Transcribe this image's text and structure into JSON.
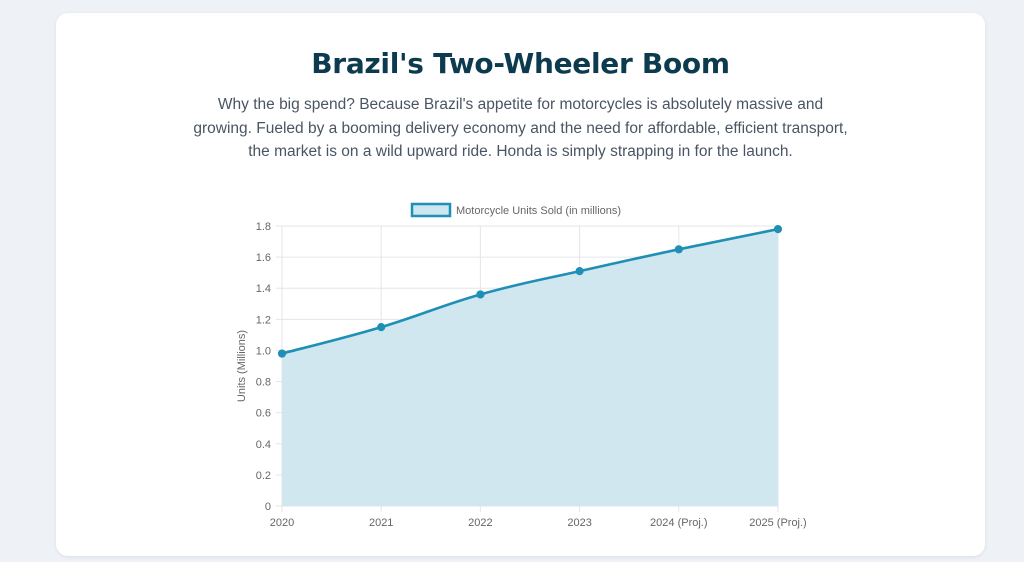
{
  "page": {
    "title": "Brazil's Two-Wheeler Boom",
    "description": "Why the big spend? Because Brazil's appetite for motorcycles is absolutely massive and growing. Fueled by a booming delivery economy and the need for affordable, efficient transport, the market is on a wild upward ride. Honda is simply strapping in for the launch."
  },
  "colors": {
    "line": "#1f8fb5",
    "fill": "#cde6ef",
    "title": "#0c3b4f",
    "grid": "#e3e6ea"
  },
  "chart_data": {
    "type": "line",
    "title": "",
    "xlabel": "",
    "ylabel": "Units (Millions)",
    "categories": [
      "2020",
      "2021",
      "2022",
      "2023",
      "2024 (Proj.)",
      "2025 (Proj.)"
    ],
    "series": [
      {
        "name": "Motorcycle Units Sold (in millions)",
        "values": [
          0.98,
          1.15,
          1.36,
          1.51,
          1.65,
          1.78
        ],
        "fill": true
      }
    ],
    "ylim": [
      0,
      1.8
    ],
    "yticks": [
      "0",
      "0.2",
      "0.4",
      "0.6",
      "0.8",
      "1.0",
      "1.2",
      "1.4",
      "1.6",
      "1.8"
    ],
    "grid": true,
    "legend": "top"
  }
}
